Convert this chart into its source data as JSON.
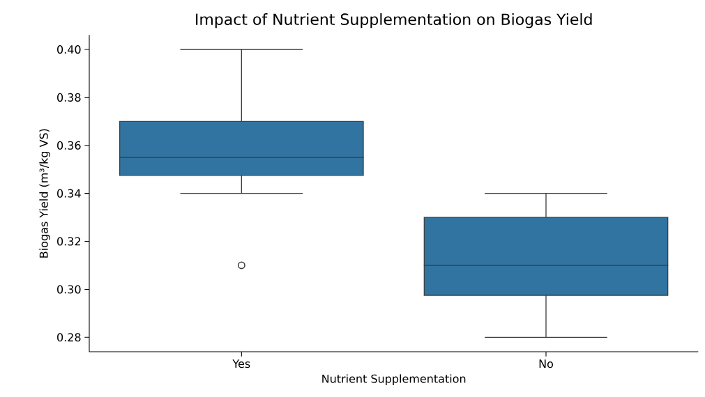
{
  "chart_data": {
    "type": "box",
    "title": "Impact of Nutrient Supplementation on Biogas Yield",
    "xlabel": "Nutrient Supplementation",
    "ylabel": "Biogas Yield (m³/kg VS)",
    "categories": [
      "Yes",
      "No"
    ],
    "color": "#3274a1",
    "boxes": [
      {
        "low": 0.34,
        "q1": 0.3475,
        "median": 0.355,
        "q3": 0.37,
        "high": 0.4,
        "outliers": [
          0.31
        ]
      },
      {
        "low": 0.28,
        "q1": 0.2975,
        "median": 0.31,
        "q3": 0.33,
        "high": 0.34
      }
    ],
    "ylim": [
      0.274,
      0.406
    ],
    "yticks": [
      0.28,
      {
        "value": 0.3,
        "label": "0.30"
      },
      0.32,
      0.34,
      0.36,
      0.38,
      {
        "value": 0.4,
        "label": "0.40"
      }
    ]
  }
}
